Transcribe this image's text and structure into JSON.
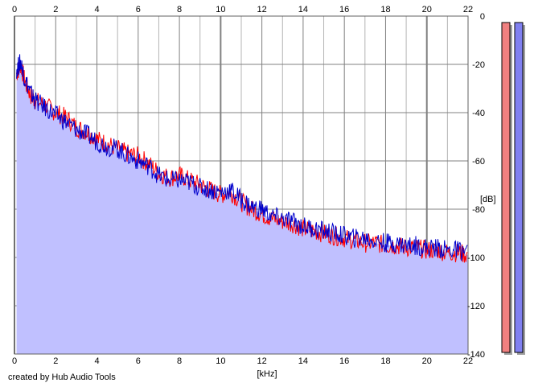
{
  "credit": "created by Hub Audio Tools",
  "chart_data": {
    "type": "area",
    "xlabel": "[kHz]",
    "ylabel": "[dB]",
    "xlim": [
      0,
      22
    ],
    "ylim": [
      -140,
      0
    ],
    "x_ticks": [
      0,
      2,
      4,
      6,
      8,
      10,
      12,
      14,
      16,
      18,
      20,
      22
    ],
    "y_ticks": [
      0,
      -20,
      -40,
      -60,
      -80,
      -100,
      -120,
      -140
    ],
    "grid": true,
    "colors": {
      "fill": "#c0c0ff",
      "left_channel": "#ff0000",
      "right_channel": "#0000cc",
      "grid_major": "#808080",
      "grid_minor": "#b4b4b4",
      "meter_left": "#f08080",
      "meter_right": "#8080f0"
    },
    "series": [
      {
        "color": "#ff0000",
        "x": [
          0.1,
          0.3,
          0.5,
          0.8,
          1,
          1.5,
          2,
          2.5,
          3,
          3.5,
          4,
          4.5,
          5,
          5.5,
          6,
          6.5,
          7,
          7.5,
          8,
          8.5,
          9,
          9.5,
          10,
          10.5,
          11,
          11.5,
          12,
          12.5,
          13,
          13.5,
          14,
          14.5,
          15,
          15.5,
          16,
          16.5,
          17,
          17.5,
          18,
          18.5,
          19,
          19.5,
          20,
          20.5,
          21,
          21.5,
          22
        ],
        "y": [
          -24,
          -20,
          -27,
          -33,
          -35,
          -37,
          -40,
          -42,
          -46,
          -48,
          -51,
          -53,
          -55,
          -57,
          -58,
          -61,
          -65,
          -67,
          -66,
          -68,
          -70,
          -72,
          -74,
          -73,
          -77,
          -80,
          -82,
          -84,
          -85,
          -86,
          -88,
          -89,
          -90,
          -91,
          -92,
          -93,
          -94,
          -94,
          -95,
          -95,
          -96,
          -96,
          -97,
          -97,
          -98,
          -98,
          -99
        ]
      },
      {
        "color": "#0000cc",
        "x": [
          0.1,
          0.3,
          0.5,
          0.8,
          1,
          1.5,
          2,
          2.5,
          3,
          3.5,
          4,
          4.5,
          5,
          5.5,
          6,
          6.5,
          7,
          7.5,
          8,
          8.5,
          9,
          9.5,
          10,
          10.5,
          11,
          11.5,
          12,
          12.5,
          13,
          13.5,
          14,
          14.5,
          15,
          15.5,
          16,
          16.5,
          17,
          17.5,
          18,
          18.5,
          19,
          19.5,
          20,
          20.5,
          21,
          21.5,
          22
        ],
        "y": [
          -22,
          -19,
          -26,
          -32,
          -35,
          -38,
          -41,
          -44,
          -47,
          -49,
          -52,
          -54,
          -55,
          -58,
          -60,
          -62,
          -66,
          -68,
          -68,
          -69,
          -71,
          -72,
          -73,
          -72,
          -76,
          -79,
          -80,
          -83,
          -84,
          -85,
          -87,
          -88,
          -89,
          -90,
          -91,
          -92,
          -92,
          -93,
          -94,
          -94,
          -95,
          -95,
          -96,
          -96,
          -97,
          -97,
          -98
        ]
      }
    ],
    "meters": [
      {
        "color": "#f08080",
        "level": 1.0
      },
      {
        "color": "#8080f0",
        "level": 1.0
      }
    ]
  }
}
